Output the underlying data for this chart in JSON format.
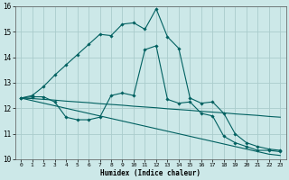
{
  "xlabel": "Humidex (Indice chaleur)",
  "background_color": "#cce8e8",
  "grid_color": "#aacccc",
  "line_color": "#006060",
  "xlim": [
    -0.5,
    23.5
  ],
  "ylim": [
    10,
    16
  ],
  "yticks": [
    10,
    11,
    12,
    13,
    14,
    15,
    16
  ],
  "xticks": [
    0,
    1,
    2,
    3,
    4,
    5,
    6,
    7,
    8,
    9,
    10,
    11,
    12,
    13,
    14,
    15,
    16,
    17,
    18,
    19,
    20,
    21,
    22,
    23
  ],
  "line1_x": [
    0,
    1,
    2,
    3,
    4,
    5,
    6,
    7,
    8,
    9,
    10,
    11,
    12,
    13,
    14,
    15,
    16,
    17,
    18,
    19,
    20,
    21,
    22,
    23
  ],
  "line1_y": [
    12.4,
    12.5,
    12.85,
    13.3,
    13.7,
    14.1,
    14.5,
    14.9,
    14.85,
    15.3,
    15.35,
    15.1,
    15.9,
    14.8,
    14.35,
    12.4,
    12.2,
    12.25,
    11.8,
    11.0,
    10.65,
    10.5,
    10.4,
    10.35
  ],
  "line2_x": [
    0,
    1,
    2,
    3,
    4,
    5,
    6,
    7,
    8,
    9,
    10,
    11,
    12,
    13,
    14,
    15,
    16,
    17,
    18,
    19,
    20,
    21,
    22,
    23
  ],
  "line2_y": [
    12.4,
    12.38,
    12.35,
    12.32,
    12.28,
    12.25,
    12.22,
    12.18,
    12.15,
    12.12,
    12.08,
    12.05,
    12.02,
    11.98,
    11.95,
    11.92,
    11.88,
    11.85,
    11.82,
    11.78,
    11.75,
    11.72,
    11.68,
    11.65
  ],
  "line3_x": [
    0,
    1,
    2,
    3,
    4,
    5,
    6,
    7,
    8,
    9,
    10,
    11,
    12,
    13,
    14,
    15,
    16,
    17,
    18,
    19,
    20,
    21,
    22,
    23
  ],
  "line3_y": [
    12.4,
    12.3,
    12.2,
    12.1,
    12.0,
    11.9,
    11.8,
    11.7,
    11.6,
    11.5,
    11.4,
    11.3,
    11.2,
    11.1,
    11.0,
    10.9,
    10.8,
    10.7,
    10.6,
    10.5,
    10.4,
    10.3,
    10.2,
    10.15
  ],
  "line4_x": [
    0,
    1,
    2,
    3,
    4,
    5,
    6,
    7,
    8,
    9,
    10,
    11,
    12,
    13,
    14,
    15,
    16,
    17,
    18,
    19,
    20,
    21,
    22,
    23
  ],
  "line4_y": [
    12.4,
    12.45,
    12.45,
    12.25,
    11.65,
    11.55,
    11.55,
    11.65,
    12.5,
    12.6,
    12.5,
    14.3,
    14.45,
    12.35,
    12.2,
    12.25,
    11.8,
    11.7,
    10.9,
    10.65,
    10.5,
    10.35,
    10.35,
    10.3
  ]
}
